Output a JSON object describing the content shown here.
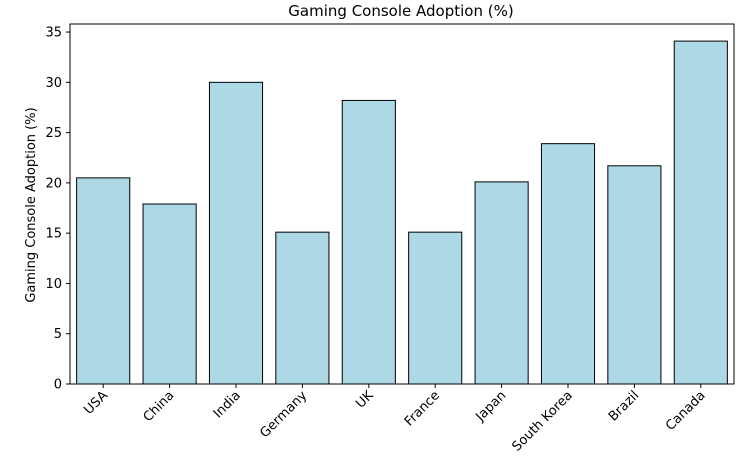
{
  "chart_data": {
    "type": "bar",
    "title": "Gaming Console Adoption (%)",
    "xlabel": "",
    "ylabel": "Gaming Console Adoption (%)",
    "categories": [
      "USA",
      "China",
      "India",
      "Germany",
      "UK",
      "France",
      "Japan",
      "South Korea",
      "Brazil",
      "Canada"
    ],
    "values": [
      20.5,
      17.9,
      30.0,
      15.1,
      28.2,
      15.1,
      20.1,
      23.9,
      21.7,
      34.1
    ],
    "ylim": [
      0,
      35.8
    ],
    "yticks": [
      0,
      5,
      10,
      15,
      20,
      25,
      30,
      35
    ],
    "bar_color": "#add8e6",
    "edge_color": "#000000",
    "grid": false,
    "legend": "none"
  }
}
